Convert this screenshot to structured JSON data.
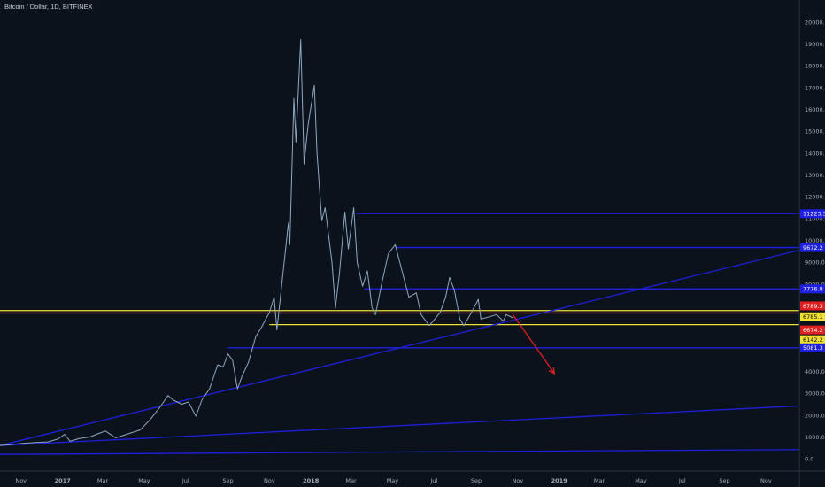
{
  "header": {
    "title": "Bitcoin / Dollar, 1D, BITFINEX"
  },
  "colors": {
    "background": "#0b121b",
    "price_line": "#8fa8c2",
    "level_blue": "#1f1fe0",
    "level_yellow": "#f0e030",
    "level_red": "#e03030",
    "arrow": "#e02020",
    "axis_text": "#a7b0bb"
  },
  "chart_data": {
    "type": "line",
    "title": "Bitcoin / Dollar, 1D, BITFINEX",
    "xlabel": "",
    "ylabel": "",
    "ylim": [
      -400,
      20600
    ],
    "xlim": [
      "2016-10-01",
      "2019-12-20"
    ],
    "x_ticks": [
      {
        "label": "Nov",
        "date": "2016-11-01"
      },
      {
        "label": "2017",
        "date": "2017-01-01"
      },
      {
        "label": "Mar",
        "date": "2017-03-01"
      },
      {
        "label": "May",
        "date": "2017-05-01"
      },
      {
        "label": "Jul",
        "date": "2017-07-01"
      },
      {
        "label": "Sep",
        "date": "2017-09-01"
      },
      {
        "label": "Nov",
        "date": "2017-11-01"
      },
      {
        "label": "2018",
        "date": "2018-01-01"
      },
      {
        "label": "Mar",
        "date": "2018-03-01"
      },
      {
        "label": "May",
        "date": "2018-05-01"
      },
      {
        "label": "Jul",
        "date": "2018-07-01"
      },
      {
        "label": "Sep",
        "date": "2018-09-01"
      },
      {
        "label": "Nov",
        "date": "2018-11-01"
      },
      {
        "label": "2019",
        "date": "2019-01-01"
      },
      {
        "label": "Mar",
        "date": "2019-03-01"
      },
      {
        "label": "May",
        "date": "2019-05-01"
      },
      {
        "label": "Jul",
        "date": "2019-07-01"
      },
      {
        "label": "Sep",
        "date": "2019-09-01"
      },
      {
        "label": "Nov",
        "date": "2019-11-01"
      }
    ],
    "y_ticks": [
      "0.0",
      "1000.0",
      "2000.0",
      "3000.0",
      "4000.0",
      "5000.0",
      "6000.0",
      "7000.0",
      "8000.0",
      "9000.0",
      "10000.0",
      "11000.0",
      "12000.0",
      "13000.0",
      "14000.0",
      "15000.0",
      "16000.0",
      "17000.0",
      "18000.0",
      "19000.0",
      "20000.0"
    ],
    "series": [
      {
        "type": "line",
        "points": [
          [
            "2016-10-01",
            610
          ],
          [
            "2016-10-15",
            640
          ],
          [
            "2016-11-01",
            700
          ],
          [
            "2016-11-20",
            740
          ],
          [
            "2016-12-10",
            770
          ],
          [
            "2016-12-25",
            900
          ],
          [
            "2017-01-04",
            1120
          ],
          [
            "2017-01-12",
            800
          ],
          [
            "2017-01-25",
            920
          ],
          [
            "2017-02-10",
            1000
          ],
          [
            "2017-02-25",
            1180
          ],
          [
            "2017-03-05",
            1270
          ],
          [
            "2017-03-20",
            960
          ],
          [
            "2017-04-05",
            1120
          ],
          [
            "2017-04-25",
            1320
          ],
          [
            "2017-05-10",
            1800
          ],
          [
            "2017-05-25",
            2400
          ],
          [
            "2017-06-05",
            2900
          ],
          [
            "2017-06-12",
            2700
          ],
          [
            "2017-06-25",
            2500
          ],
          [
            "2017-07-05",
            2600
          ],
          [
            "2017-07-16",
            1950
          ],
          [
            "2017-07-25",
            2700
          ],
          [
            "2017-08-05",
            3200
          ],
          [
            "2017-08-17",
            4300
          ],
          [
            "2017-08-25",
            4200
          ],
          [
            "2017-09-01",
            4800
          ],
          [
            "2017-09-08",
            4500
          ],
          [
            "2017-09-15",
            3200
          ],
          [
            "2017-09-22",
            3800
          ],
          [
            "2017-10-01",
            4400
          ],
          [
            "2017-10-12",
            5600
          ],
          [
            "2017-10-20",
            6000
          ],
          [
            "2017-11-01",
            6700
          ],
          [
            "2017-11-08",
            7400
          ],
          [
            "2017-11-12",
            5900
          ],
          [
            "2017-11-20",
            8200
          ],
          [
            "2017-11-29",
            10800
          ],
          [
            "2017-12-01",
            9800
          ],
          [
            "2017-12-07",
            16500
          ],
          [
            "2017-12-10",
            14500
          ],
          [
            "2017-12-17",
            19200
          ],
          [
            "2017-12-22",
            13500
          ],
          [
            "2017-12-28",
            15300
          ],
          [
            "2018-01-06",
            17100
          ],
          [
            "2018-01-10",
            14000
          ],
          [
            "2018-01-17",
            10900
          ],
          [
            "2018-01-22",
            11500
          ],
          [
            "2018-02-01",
            9000
          ],
          [
            "2018-02-06",
            6900
          ],
          [
            "2018-02-12",
            8500
          ],
          [
            "2018-02-20",
            11300
          ],
          [
            "2018-02-25",
            9600
          ],
          [
            "2018-03-05",
            11500
          ],
          [
            "2018-03-10",
            9000
          ],
          [
            "2018-03-18",
            7900
          ],
          [
            "2018-03-25",
            8600
          ],
          [
            "2018-04-01",
            6900
          ],
          [
            "2018-04-06",
            6600
          ],
          [
            "2018-04-15",
            8000
          ],
          [
            "2018-04-25",
            9400
          ],
          [
            "2018-05-05",
            9800
          ],
          [
            "2018-05-15",
            8600
          ],
          [
            "2018-05-25",
            7400
          ],
          [
            "2018-06-05",
            7600
          ],
          [
            "2018-06-12",
            6600
          ],
          [
            "2018-06-24",
            6100
          ],
          [
            "2018-07-01",
            6350
          ],
          [
            "2018-07-10",
            6700
          ],
          [
            "2018-07-18",
            7400
          ],
          [
            "2018-07-24",
            8300
          ],
          [
            "2018-07-31",
            7700
          ],
          [
            "2018-08-08",
            6400
          ],
          [
            "2018-08-14",
            6100
          ],
          [
            "2018-08-25",
            6700
          ],
          [
            "2018-09-04",
            7300
          ],
          [
            "2018-09-08",
            6400
          ],
          [
            "2018-09-20",
            6500
          ],
          [
            "2018-10-01",
            6600
          ],
          [
            "2018-10-11",
            6300
          ],
          [
            "2018-10-15",
            6600
          ],
          [
            "2018-10-25",
            6450
          ]
        ]
      }
    ],
    "horizontal_levels": [
      {
        "value": 11223.5,
        "label": "11223.5",
        "from": "2018-03-08",
        "color": "blue"
      },
      {
        "value": 9672.2,
        "label": "9672.2",
        "from": "2018-05-06",
        "color": "blue"
      },
      {
        "value": 7776.8,
        "label": "7776.8",
        "from": "2018-03-20",
        "color": "blue"
      },
      {
        "value": 6785.1,
        "label": "6785.1",
        "from": "2016-10-01",
        "color": "yellow"
      },
      {
        "value": 6674.2,
        "label": "6674.2",
        "from": "2016-10-01",
        "color": "red"
      },
      {
        "value": 6142.2,
        "label": "6142.2",
        "from": "2017-11-01",
        "color": "yellow"
      },
      {
        "value": 5081.3,
        "label": "5081.3",
        "from": "2017-09-01",
        "color": "blue"
      }
    ],
    "trendlines": [
      {
        "from": [
          "2016-10-01",
          610
        ],
        "to": [
          "2019-12-20",
          9550
        ]
      },
      {
        "from": [
          "2016-10-01",
          610
        ],
        "to": [
          "2019-12-20",
          2420
        ]
      },
      {
        "from": [
          "2016-10-01",
          200
        ],
        "to": [
          "2019-12-20",
          420
        ]
      }
    ],
    "arrow": {
      "from": [
        "2018-10-25",
        6600
      ],
      "to": [
        "2018-12-25",
        3900
      ]
    },
    "price_labels": [
      {
        "label": "11223.5",
        "value": 11223.5,
        "bg": "#1f1fe0",
        "fg": "#ffffff"
      },
      {
        "label": "9672.2",
        "value": 9672.2,
        "bg": "#1f1fe0",
        "fg": "#ffffff"
      },
      {
        "label": "7776.8",
        "value": 7776.8,
        "bg": "#1f1fe0",
        "fg": "#ffffff"
      },
      {
        "label": "6789.3",
        "value": 7000,
        "bg": "#e02020",
        "fg": "#ffffff"
      },
      {
        "label": "6785.1",
        "value": 6500,
        "bg": "#f0e030",
        "fg": "#000000"
      },
      {
        "label": "6674.2",
        "value": 5900,
        "bg": "#e02020",
        "fg": "#ffffff"
      },
      {
        "label": "6142.2",
        "value": 5450,
        "bg": "#f0e030",
        "fg": "#000000"
      },
      {
        "label": "5081.3",
        "value": 5081.3,
        "bg": "#1f1fe0",
        "fg": "#ffffff"
      }
    ]
  }
}
